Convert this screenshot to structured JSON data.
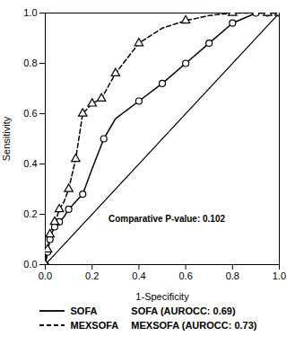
{
  "chart_data": {
    "type": "line",
    "xlabel": "1-Specificity",
    "ylabel": "Sensitivity",
    "xlim": [
      0.0,
      1.0
    ],
    "ylim": [
      0.0,
      1.0
    ],
    "xticks": [
      {
        "value": 0,
        "label": "0.0"
      },
      0.2,
      0.4,
      0.6,
      0.8,
      {
        "value": 1,
        "label": "1.0"
      }
    ],
    "yticks": [
      {
        "value": 0,
        "label": "0.0"
      },
      0.2,
      0.4,
      0.6,
      0.8,
      {
        "value": 1,
        "label": "1.0"
      }
    ],
    "grid": false,
    "legend": "bottom",
    "annotations": [
      {
        "text": "Comparative P-value: 0.102",
        "x": 0.27,
        "y": 0.17
      }
    ],
    "series": [
      {
        "color": "#000000",
        "line_style": "solid",
        "x": [
          0.0,
          1.0
        ],
        "values": [
          0.0,
          1.0
        ]
      },
      {
        "name": "SOFA",
        "legend_text": "SOFA (AUROCC: 0.69)",
        "color": "#000000",
        "line_style": "solid",
        "marker": "circle",
        "x": [
          0.0,
          0.01,
          0.02,
          0.03,
          0.04,
          0.05,
          0.06,
          0.08,
          0.1,
          0.13,
          0.16,
          0.2,
          0.25,
          0.3,
          0.4,
          0.5,
          0.6,
          0.7,
          0.8,
          0.9,
          0.95,
          1.0
        ],
        "values": [
          0.0,
          0.05,
          0.1,
          0.13,
          0.15,
          0.16,
          0.17,
          0.19,
          0.22,
          0.25,
          0.28,
          0.38,
          0.5,
          0.58,
          0.65,
          0.72,
          0.8,
          0.88,
          0.96,
          1.0,
          1.0,
          1.0
        ],
        "marker_x": [
          0.0,
          0.01,
          0.02,
          0.04,
          0.06,
          0.1,
          0.16,
          0.25,
          0.4,
          0.5,
          0.6,
          0.7,
          0.8,
          0.9,
          0.95,
          1.0
        ],
        "marker_y": [
          0.0,
          0.05,
          0.1,
          0.15,
          0.17,
          0.22,
          0.28,
          0.5,
          0.65,
          0.72,
          0.8,
          0.88,
          0.96,
          1.0,
          1.0,
          1.0
        ]
      },
      {
        "name": "MEXSOFA",
        "legend_text": "MEXSOFA (AUROCC: 0.73)",
        "color": "#000000",
        "line_style": "dashed",
        "marker": "triangle",
        "x": [
          0.0,
          0.01,
          0.02,
          0.03,
          0.04,
          0.05,
          0.06,
          0.08,
          0.1,
          0.13,
          0.16,
          0.2,
          0.24,
          0.3,
          0.4,
          0.5,
          0.6,
          0.7,
          0.8,
          0.9,
          0.95,
          1.0
        ],
        "values": [
          0.0,
          0.06,
          0.12,
          0.15,
          0.17,
          0.19,
          0.22,
          0.25,
          0.3,
          0.42,
          0.6,
          0.64,
          0.66,
          0.76,
          0.88,
          0.94,
          0.97,
          0.99,
          1.0,
          1.0,
          1.0,
          1.0
        ],
        "marker_x": [
          0.0,
          0.01,
          0.02,
          0.04,
          0.06,
          0.1,
          0.13,
          0.16,
          0.2,
          0.24,
          0.3,
          0.4,
          0.6,
          0.8,
          0.95,
          1.0
        ],
        "marker_y": [
          0.0,
          0.06,
          0.12,
          0.17,
          0.22,
          0.3,
          0.42,
          0.6,
          0.64,
          0.66,
          0.76,
          0.88,
          0.97,
          1.0,
          1.0,
          1.0
        ]
      }
    ]
  }
}
